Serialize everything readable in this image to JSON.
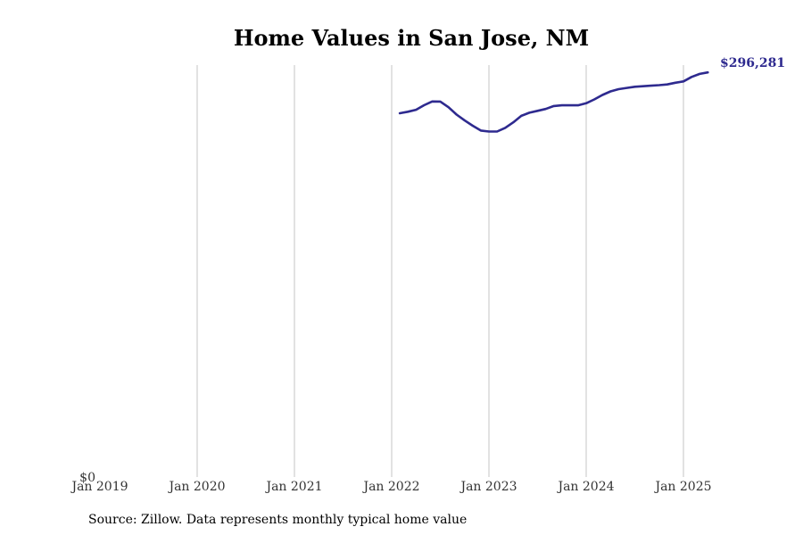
{
  "chart_data": {
    "type": "line",
    "title": "Home Values in San Jose, NM",
    "xlabel": "",
    "ylabel": "",
    "x_tick_labels": [
      "Jan 2019",
      "Jan 2020",
      "Jan 2021",
      "Jan 2022",
      "Jan 2023",
      "Jan 2024",
      "Jan 2025"
    ],
    "y_tick_labels": [
      "$0"
    ],
    "xlim": [
      "2019-01",
      "2025-12"
    ],
    "ylim": [
      0,
      296281
    ],
    "grid": "vertical",
    "line_color": "#2e2a8f",
    "end_label": "$296,281",
    "source": "Source: Zillow. Data represents monthly typical home value",
    "series": [
      {
        "x": [
          "2022-02",
          "2022-03",
          "2022-04",
          "2022-05",
          "2022-06",
          "2022-07",
          "2022-08",
          "2022-09",
          "2022-10",
          "2022-11",
          "2022-12",
          "2023-01",
          "2023-02",
          "2023-03",
          "2023-04",
          "2023-05",
          "2023-06",
          "2023-07",
          "2023-08",
          "2023-09",
          "2023-10",
          "2023-11",
          "2023-12",
          "2024-01",
          "2024-02",
          "2024-03",
          "2024-04",
          "2024-05",
          "2024-06",
          "2024-07",
          "2024-08",
          "2024-09",
          "2024-10",
          "2024-11",
          "2024-12",
          "2025-01",
          "2025-02",
          "2025-03",
          "2025-04"
        ],
        "values": [
          262800,
          263900,
          265300,
          268600,
          271300,
          271200,
          267200,
          261800,
          257600,
          253800,
          250300,
          249600,
          249600,
          252200,
          256200,
          260900,
          263200,
          264500,
          265900,
          268000,
          268500,
          268600,
          268500,
          270000,
          272800,
          276000,
          278600,
          280200,
          281100,
          281900,
          282300,
          282700,
          283100,
          283600,
          284800,
          285800,
          289000,
          291200,
          292300
        ]
      }
    ]
  }
}
